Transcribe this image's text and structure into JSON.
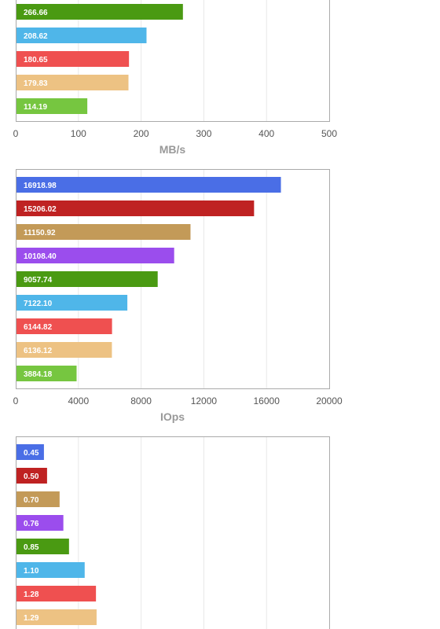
{
  "chart_data": [
    {
      "type": "bar",
      "orientation": "horizontal",
      "xlabel": "MB/s",
      "xlim": [
        0,
        500
      ],
      "xticks": [
        "0",
        "100",
        "200",
        "300",
        "400",
        "500"
      ],
      "grid": true,
      "values": [
        266.66,
        208.62,
        180.65,
        179.83,
        114.19
      ],
      "labels": [
        "266.66",
        "208.62",
        "180.65",
        "179.83",
        "114.19"
      ],
      "colors": [
        "#4a9a12",
        "#4fb6e9",
        "#ef5050",
        "#edc283",
        "#76c640"
      ]
    },
    {
      "type": "bar",
      "orientation": "horizontal",
      "xlabel": "IOps",
      "xlim": [
        0,
        20000
      ],
      "xticks": [
        "0",
        "4000",
        "8000",
        "12000",
        "16000",
        "20000"
      ],
      "grid": true,
      "values": [
        16918.98,
        15206.02,
        11150.92,
        10108.4,
        9057.74,
        7122.1,
        6144.82,
        6136.12,
        3884.18
      ],
      "labels": [
        "16918.98",
        "15206.02",
        "11150.92",
        "10108.40",
        "9057.74",
        "7122.10",
        "6144.82",
        "6136.12",
        "3884.18"
      ],
      "colors": [
        "#4a6ee6",
        "#bf2222",
        "#c39a58",
        "#9b4ded",
        "#4a9a12",
        "#4fb6e9",
        "#ef5050",
        "#edc283",
        "#76c640"
      ]
    },
    {
      "type": "bar",
      "orientation": "horizontal",
      "xlim": [
        0,
        5
      ],
      "grid": true,
      "values": [
        0.45,
        0.5,
        0.7,
        0.76,
        0.85,
        1.1,
        1.28,
        1.29
      ],
      "labels": [
        "0.45",
        "0.50",
        "0.70",
        "0.76",
        "0.85",
        "1.10",
        "1.28",
        "1.29"
      ],
      "colors": [
        "#4a6ee6",
        "#bf2222",
        "#c39a58",
        "#9b4ded",
        "#4a9a12",
        "#4fb6e9",
        "#ef5050",
        "#edc283"
      ]
    }
  ]
}
